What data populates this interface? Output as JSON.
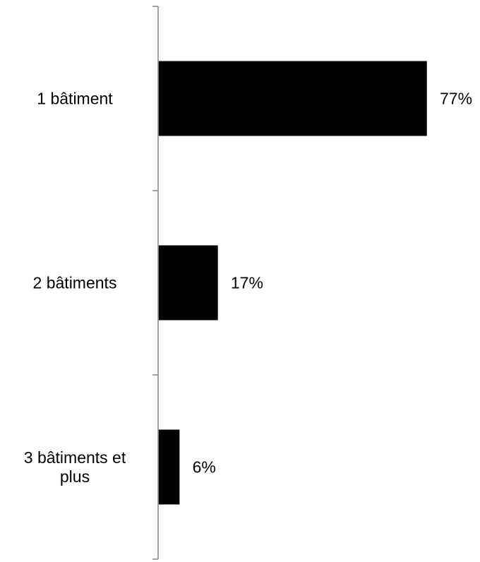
{
  "chart_data": {
    "type": "bar",
    "orientation": "horizontal",
    "categories": [
      "1 bâtiment",
      "2 bâtiments",
      "3 bâtiments et plus"
    ],
    "values": [
      77,
      17,
      6
    ],
    "value_labels": [
      "77%",
      "17%",
      "6%"
    ],
    "unit": "%",
    "xlim": [
      0,
      100
    ],
    "grid": false,
    "legend": "none",
    "title": "",
    "xlabel": "",
    "ylabel": "",
    "colors": {
      "bar": "#000000",
      "axis": "#868686",
      "text": "#000000"
    }
  }
}
